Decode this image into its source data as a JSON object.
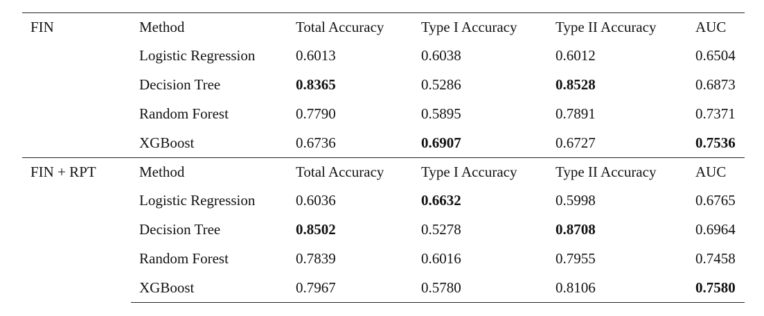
{
  "table": {
    "groups": [
      {
        "label": "FIN",
        "header": [
          "Method",
          "Total Accuracy",
          "Type I Accuracy",
          "Type II Accuracy",
          "AUC"
        ],
        "rows": [
          {
            "method": "Logistic Regression",
            "total": "0.6013",
            "type1": "0.6038",
            "type2": "0.6012",
            "auc": "0.6504"
          },
          {
            "method": "Decision Tree",
            "total": "0.8365",
            "type1": "0.5286",
            "type2": "0.8528",
            "auc": "0.6873"
          },
          {
            "method": "Random Forest",
            "total": "0.7790",
            "type1": "0.5895",
            "type2": "0.7891",
            "auc": "0.7371"
          },
          {
            "method": "XGBoost",
            "total": "0.6736",
            "type1": "0.6907",
            "type2": "0.6727",
            "auc": "0.7536"
          }
        ]
      },
      {
        "label": "FIN + RPT",
        "header": [
          "Method",
          "Total Accuracy",
          "Type I Accuracy",
          "Type II Accuracy",
          "AUC"
        ],
        "rows": [
          {
            "method": "Logistic Regression",
            "total": "0.6036",
            "type1": "0.6632",
            "type2": "0.5998",
            "auc": "0.6765"
          },
          {
            "method": "Decision Tree",
            "total": "0.8502",
            "type1": "0.5278",
            "type2": "0.8708",
            "auc": "0.6964"
          },
          {
            "method": "Random Forest",
            "total": "0.7839",
            "type1": "0.6016",
            "type2": "0.7955",
            "auc": "0.7458"
          },
          {
            "method": "XGBoost",
            "total": "0.7967",
            "type1": "0.5780",
            "type2": "0.8106",
            "auc": "0.7580"
          }
        ]
      }
    ]
  }
}
